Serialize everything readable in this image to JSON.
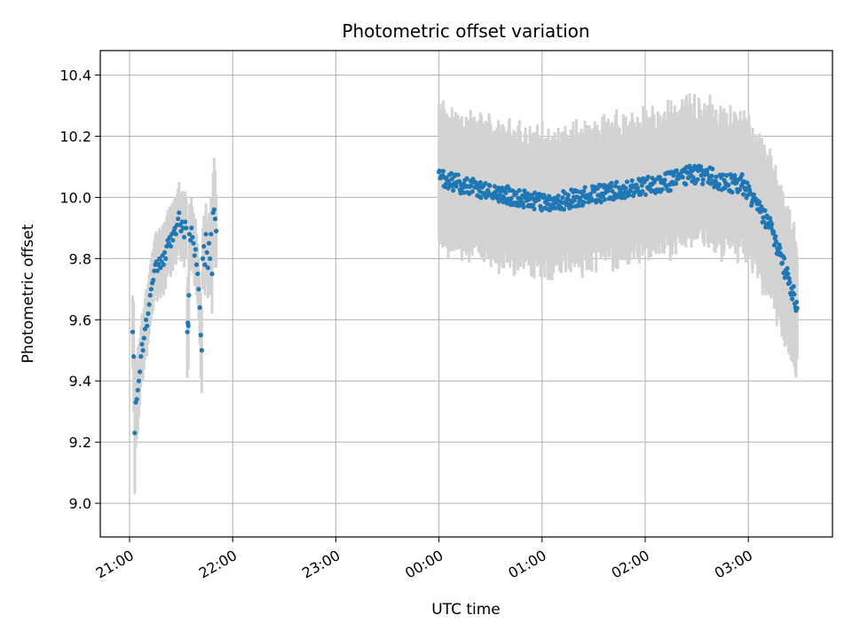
{
  "chart_data": {
    "type": "scatter",
    "title": "Photometric offset variation",
    "xlabel": "UTC time",
    "ylabel": "Photometric offset",
    "x_ticks": [
      "21:00",
      "22:00",
      "23:00",
      "00:00",
      "01:00",
      "02:00",
      "03:00"
    ],
    "y_ticks": [
      9.0,
      9.2,
      9.4,
      9.6,
      9.8,
      10.0,
      10.2,
      10.4
    ],
    "xlim_hours": [
      -0.27,
      6.8
    ],
    "ylim": [
      8.89,
      10.48
    ],
    "grid": true,
    "colors": {
      "points": "#1f77b4",
      "errorbars": "#d3d3d3"
    },
    "series": [
      {
        "name": "",
        "points": [
          [
            0.03,
            9.56,
            0.12
          ],
          [
            0.04,
            9.48,
            0.18
          ],
          [
            0.05,
            9.23,
            0.2
          ],
          [
            0.06,
            9.33,
            0.15
          ],
          [
            0.07,
            9.34,
            0.13
          ],
          [
            0.08,
            9.37,
            0.14
          ],
          [
            0.09,
            9.4,
            0.12
          ],
          [
            0.1,
            9.43,
            0.11
          ],
          [
            0.11,
            9.48,
            0.1
          ],
          [
            0.12,
            9.52,
            0.1
          ],
          [
            0.13,
            9.5,
            0.1
          ],
          [
            0.14,
            9.54,
            0.1
          ],
          [
            0.15,
            9.57,
            0.1
          ],
          [
            0.16,
            9.6,
            0.1
          ],
          [
            0.17,
            9.58,
            0.1
          ],
          [
            0.18,
            9.62,
            0.1
          ],
          [
            0.19,
            9.65,
            0.1
          ],
          [
            0.2,
            9.68,
            0.1
          ],
          [
            0.21,
            9.7,
            0.1
          ],
          [
            0.22,
            9.72,
            0.1
          ],
          [
            0.23,
            9.73,
            0.1
          ],
          [
            0.24,
            9.76,
            0.1
          ],
          [
            0.25,
            9.78,
            0.1
          ],
          [
            0.26,
            9.79,
            0.1
          ],
          [
            0.27,
            9.76,
            0.1
          ],
          [
            0.28,
            9.78,
            0.1
          ],
          [
            0.29,
            9.8,
            0.1
          ],
          [
            0.3,
            9.77,
            0.1
          ],
          [
            0.31,
            9.79,
            0.1
          ],
          [
            0.32,
            9.81,
            0.1
          ],
          [
            0.33,
            9.78,
            0.1
          ],
          [
            0.34,
            9.82,
            0.1
          ],
          [
            0.35,
            9.8,
            0.1
          ],
          [
            0.36,
            9.84,
            0.1
          ],
          [
            0.37,
            9.86,
            0.1
          ],
          [
            0.38,
            9.85,
            0.1
          ],
          [
            0.39,
            9.87,
            0.1
          ],
          [
            0.4,
            9.84,
            0.1
          ],
          [
            0.41,
            9.88,
            0.1
          ],
          [
            0.42,
            9.86,
            0.1
          ],
          [
            0.43,
            9.89,
            0.1
          ],
          [
            0.44,
            9.9,
            0.1
          ],
          [
            0.45,
            9.88,
            0.1
          ],
          [
            0.46,
            9.91,
            0.1
          ],
          [
            0.47,
            9.93,
            0.1
          ],
          [
            0.48,
            9.95,
            0.1
          ],
          [
            0.49,
            9.91,
            0.1
          ],
          [
            0.5,
            9.89,
            0.1
          ],
          [
            0.51,
            9.92,
            0.1
          ],
          [
            0.52,
            9.9,
            0.1
          ],
          [
            0.53,
            9.87,
            0.1
          ],
          [
            0.54,
            9.92,
            0.1
          ],
          [
            0.55,
            9.9,
            0.1
          ],
          [
            0.56,
            9.56,
            0.15
          ],
          [
            0.565,
            9.59,
            0.15
          ],
          [
            0.57,
            9.58,
            0.14
          ],
          [
            0.575,
            9.68,
            0.12
          ],
          [
            0.58,
            9.88,
            0.1
          ],
          [
            0.59,
            9.86,
            0.1
          ],
          [
            0.6,
            9.9,
            0.1
          ],
          [
            0.61,
            9.87,
            0.1
          ],
          [
            0.62,
            9.85,
            0.1
          ],
          [
            0.63,
            9.81,
            0.1
          ],
          [
            0.64,
            9.83,
            0.1
          ],
          [
            0.65,
            9.78,
            0.1
          ],
          [
            0.66,
            9.75,
            0.1
          ],
          [
            0.67,
            9.7,
            0.1
          ],
          [
            0.68,
            9.64,
            0.12
          ],
          [
            0.69,
            9.55,
            0.14
          ],
          [
            0.7,
            9.5,
            0.14
          ],
          [
            0.71,
            9.8,
            0.1
          ],
          [
            0.72,
            9.84,
            0.1
          ],
          [
            0.73,
            9.78,
            0.1
          ],
          [
            0.74,
            9.88,
            0.1
          ],
          [
            0.75,
            9.82,
            0.1
          ],
          [
            0.76,
            9.77,
            0.1
          ],
          [
            0.77,
            9.85,
            0.1
          ],
          [
            0.78,
            9.8,
            0.12
          ],
          [
            0.79,
            9.88,
            0.12
          ],
          [
            0.8,
            9.75,
            0.13
          ],
          [
            0.81,
            9.95,
            0.13
          ],
          [
            0.82,
            9.96,
            0.17
          ],
          [
            0.83,
            9.93,
            0.16
          ],
          [
            0.84,
            9.89,
            0.12
          ]
        ]
      }
    ]
  }
}
